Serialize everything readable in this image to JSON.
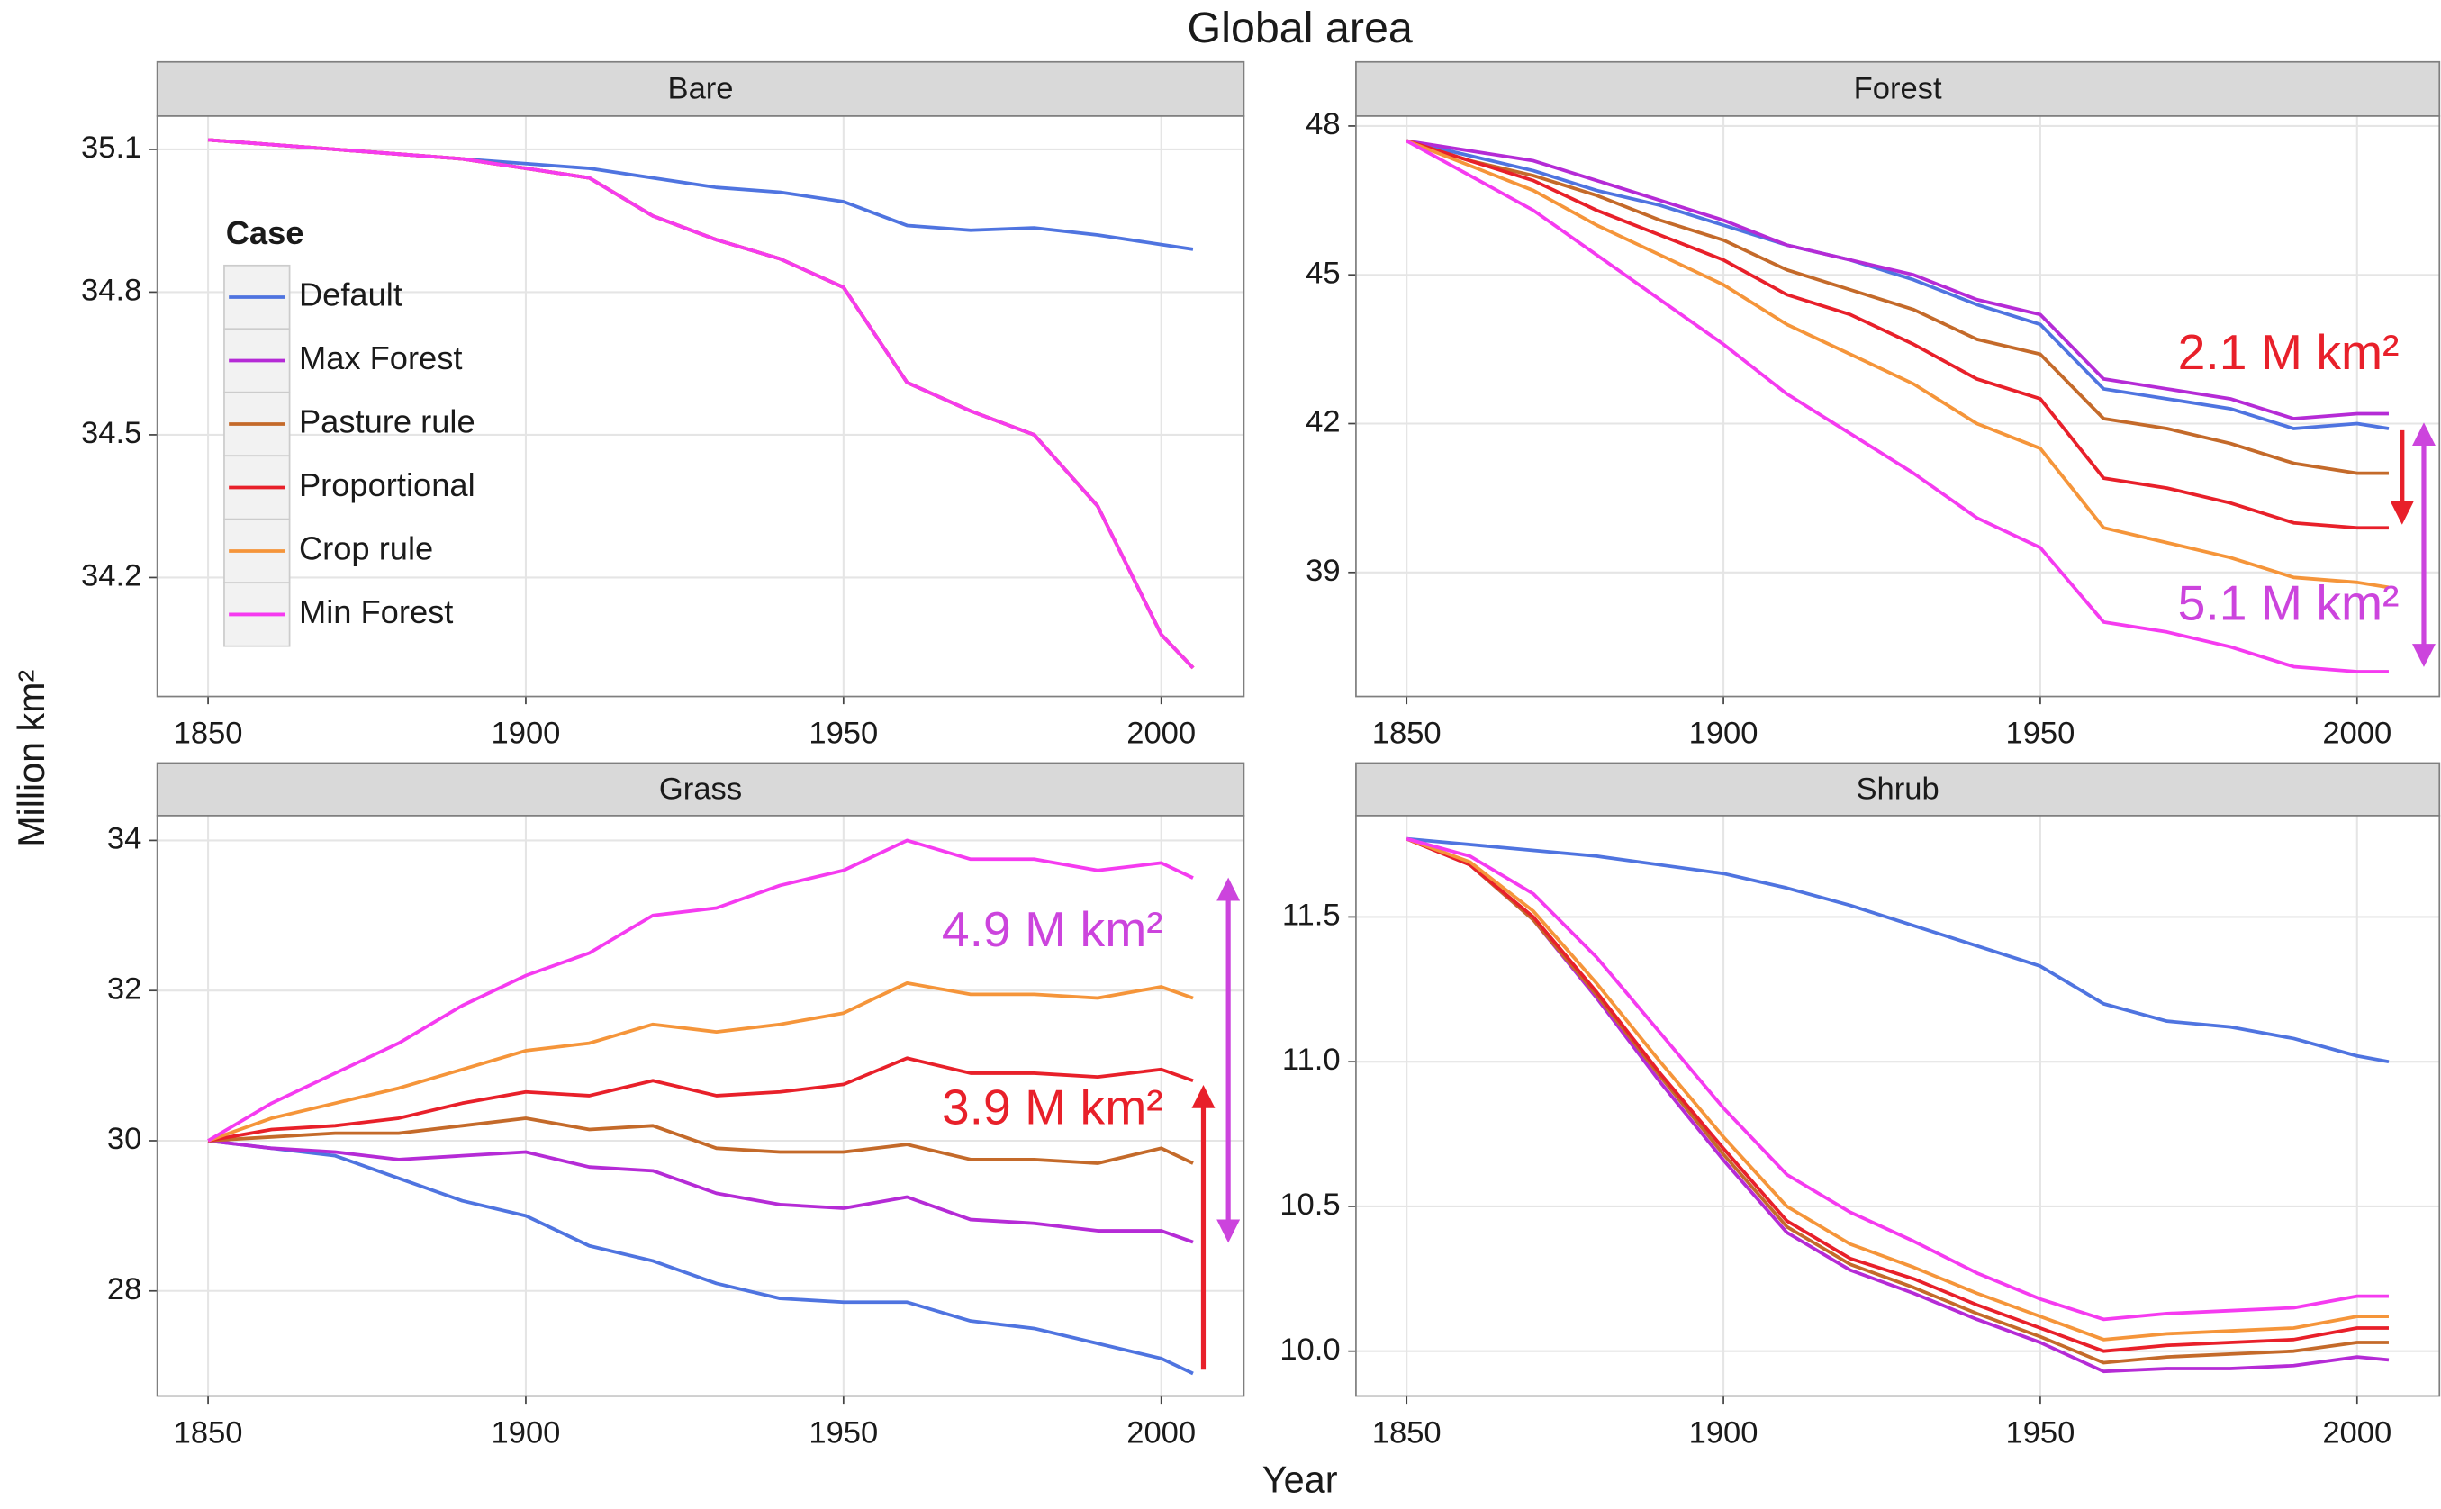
{
  "title": "Global area",
  "x_label": "Year",
  "y_label": "Million km²",
  "legend_title": "Case",
  "chart_data": [
    {
      "type": "line",
      "title": "Bare",
      "legend": "top-left",
      "x": [
        1850,
        1860,
        1870,
        1880,
        1890,
        1900,
        1910,
        1920,
        1930,
        1940,
        1950,
        1960,
        1970,
        1980,
        1990,
        2000,
        2005
      ],
      "xlim": [
        1842,
        2013
      ],
      "xticks": [
        1850,
        1900,
        1950,
        2000
      ],
      "ylim": [
        33.95,
        35.17
      ],
      "yticks": [
        34.2,
        34.5,
        34.8,
        35.1
      ],
      "series": [
        {
          "name": "Default",
          "color": "#4f74e0",
          "values": [
            35.12,
            35.11,
            35.1,
            35.09,
            35.08,
            35.07,
            35.06,
            35.04,
            35.02,
            35.01,
            34.99,
            34.94,
            34.93,
            34.935,
            34.92,
            34.9,
            34.89
          ]
        },
        {
          "name": "Max Forest",
          "color": "#b52bd6",
          "values": [
            35.12,
            35.11,
            35.1,
            35.09,
            35.08,
            35.06,
            35.04,
            34.96,
            34.91,
            34.87,
            34.81,
            34.61,
            34.55,
            34.5,
            34.35,
            34.08,
            34.01
          ]
        },
        {
          "name": "Pasture rule",
          "color": "#c46a2a",
          "values": [
            35.12,
            35.11,
            35.1,
            35.09,
            35.08,
            35.06,
            35.04,
            34.96,
            34.91,
            34.87,
            34.81,
            34.61,
            34.55,
            34.5,
            34.35,
            34.08,
            34.01
          ]
        },
        {
          "name": "Proportional",
          "color": "#e8202a",
          "values": [
            35.12,
            35.11,
            35.1,
            35.09,
            35.08,
            35.06,
            35.04,
            34.96,
            34.91,
            34.87,
            34.81,
            34.61,
            34.55,
            34.5,
            34.35,
            34.08,
            34.01
          ]
        },
        {
          "name": "Crop rule",
          "color": "#f5953a",
          "values": [
            35.12,
            35.11,
            35.1,
            35.09,
            35.08,
            35.06,
            35.04,
            34.96,
            34.91,
            34.87,
            34.81,
            34.61,
            34.55,
            34.5,
            34.35,
            34.08,
            34.01
          ]
        },
        {
          "name": "Min Forest",
          "color": "#f53bf0",
          "values": [
            35.12,
            35.11,
            35.1,
            35.09,
            35.08,
            35.06,
            35.04,
            34.96,
            34.91,
            34.87,
            34.81,
            34.61,
            34.55,
            34.5,
            34.35,
            34.08,
            34.01
          ]
        }
      ]
    },
    {
      "type": "line",
      "title": "Forest",
      "x": [
        1850,
        1860,
        1870,
        1880,
        1890,
        1900,
        1910,
        1920,
        1930,
        1940,
        1950,
        1960,
        1970,
        1980,
        1990,
        2000,
        2005
      ],
      "xlim": [
        1842,
        2013
      ],
      "xticks": [
        1850,
        1900,
        1950,
        2000
      ],
      "ylim": [
        36.5,
        48.2
      ],
      "yticks": [
        39,
        42,
        45,
        48
      ],
      "series": [
        {
          "name": "Default",
          "color": "#4f74e0",
          "values": [
            47.7,
            47.4,
            47.1,
            46.7,
            46.4,
            46.0,
            45.6,
            45.3,
            44.9,
            44.4,
            44.0,
            42.7,
            42.5,
            42.3,
            41.9,
            42.0,
            41.9
          ]
        },
        {
          "name": "Max Forest",
          "color": "#b52bd6",
          "values": [
            47.7,
            47.5,
            47.3,
            46.9,
            46.5,
            46.1,
            45.6,
            45.3,
            45.0,
            44.5,
            44.2,
            42.9,
            42.7,
            42.5,
            42.1,
            42.2,
            42.2
          ]
        },
        {
          "name": "Pasture rule",
          "color": "#c46a2a",
          "values": [
            47.7,
            47.3,
            47.0,
            46.6,
            46.1,
            45.7,
            45.1,
            44.7,
            44.3,
            43.7,
            43.4,
            42.1,
            41.9,
            41.6,
            41.2,
            41.0,
            41.0
          ]
        },
        {
          "name": "Proportional",
          "color": "#e8202a",
          "values": [
            47.7,
            47.3,
            46.9,
            46.3,
            45.8,
            45.3,
            44.6,
            44.2,
            43.6,
            42.9,
            42.5,
            40.9,
            40.7,
            40.4,
            40.0,
            39.9,
            39.9
          ]
        },
        {
          "name": "Crop rule",
          "color": "#f5953a",
          "values": [
            47.7,
            47.2,
            46.7,
            46.0,
            45.4,
            44.8,
            44.0,
            43.4,
            42.8,
            42.0,
            41.5,
            39.9,
            39.6,
            39.3,
            38.9,
            38.8,
            38.7
          ]
        },
        {
          "name": "Min Forest",
          "color": "#f53bf0",
          "values": [
            47.7,
            47.0,
            46.3,
            45.4,
            44.5,
            43.6,
            42.6,
            41.8,
            41.0,
            40.1,
            39.5,
            38.0,
            37.8,
            37.5,
            37.1,
            37.0,
            37.0
          ]
        }
      ],
      "annotations": [
        {
          "text": "2.1 M km²",
          "color": "#e8202a"
        },
        {
          "text": "5.1 M km²",
          "color": "#cc44dd"
        }
      ]
    },
    {
      "type": "line",
      "title": "Grass",
      "x": [
        1850,
        1860,
        1870,
        1880,
        1890,
        1900,
        1910,
        1920,
        1930,
        1940,
        1950,
        1960,
        1970,
        1980,
        1990,
        2000,
        2005
      ],
      "xlim": [
        1842,
        2013
      ],
      "xticks": [
        1850,
        1900,
        1950,
        2000
      ],
      "ylim": [
        26.6,
        34.33
      ],
      "yticks": [
        28,
        30,
        32,
        34
      ],
      "series": [
        {
          "name": "Default",
          "color": "#4f74e0",
          "values": [
            30.0,
            29.9,
            29.8,
            29.5,
            29.2,
            29.0,
            28.6,
            28.4,
            28.1,
            27.9,
            27.85,
            27.85,
            27.6,
            27.5,
            27.3,
            27.1,
            26.9
          ]
        },
        {
          "name": "Max Forest",
          "color": "#b52bd6",
          "values": [
            30.0,
            29.9,
            29.85,
            29.75,
            29.8,
            29.85,
            29.65,
            29.6,
            29.3,
            29.15,
            29.1,
            29.25,
            28.95,
            28.9,
            28.8,
            28.8,
            28.65
          ]
        },
        {
          "name": "Pasture rule",
          "color": "#c46a2a",
          "values": [
            30.0,
            30.05,
            30.1,
            30.1,
            30.2,
            30.3,
            30.15,
            30.2,
            29.9,
            29.85,
            29.85,
            29.95,
            29.75,
            29.75,
            29.7,
            29.9,
            29.7
          ]
        },
        {
          "name": "Proportional",
          "color": "#e8202a",
          "values": [
            30.0,
            30.15,
            30.2,
            30.3,
            30.5,
            30.65,
            30.6,
            30.8,
            30.6,
            30.65,
            30.75,
            31.1,
            30.9,
            30.9,
            30.85,
            30.95,
            30.8
          ]
        },
        {
          "name": "Crop rule",
          "color": "#f5953a",
          "values": [
            30.0,
            30.3,
            30.5,
            30.7,
            30.95,
            31.2,
            31.3,
            31.55,
            31.45,
            31.55,
            31.7,
            32.1,
            31.95,
            31.95,
            31.9,
            32.05,
            31.9
          ]
        },
        {
          "name": "Min Forest",
          "color": "#f53bf0",
          "values": [
            30.0,
            30.5,
            30.9,
            31.3,
            31.8,
            32.2,
            32.5,
            33.0,
            33.1,
            33.4,
            33.6,
            34.0,
            33.75,
            33.75,
            33.6,
            33.7,
            33.5
          ]
        }
      ],
      "annotations": [
        {
          "text": "4.9 M km²",
          "color": "#cc44dd"
        },
        {
          "text": "3.9 M km²",
          "color": "#e8202a"
        }
      ]
    },
    {
      "type": "line",
      "title": "Shrub",
      "x": [
        1850,
        1860,
        1870,
        1880,
        1890,
        1900,
        1910,
        1920,
        1930,
        1940,
        1950,
        1960,
        1970,
        1980,
        1990,
        2000,
        2005
      ],
      "xlim": [
        1842,
        2013
      ],
      "xticks": [
        1850,
        1900,
        1950,
        2000
      ],
      "ylim": [
        9.845,
        11.85
      ],
      "yticks": [
        {
          "value": 10,
          "label": "10.0"
        },
        10.5,
        {
          "value": 11,
          "label": "11.0"
        },
        11.5
      ],
      "series": [
        {
          "name": "Default",
          "color": "#4f74e0",
          "values": [
            11.77,
            11.75,
            11.73,
            11.71,
            11.68,
            11.65,
            11.6,
            11.54,
            11.47,
            11.4,
            11.33,
            11.2,
            11.14,
            11.12,
            11.08,
            11.02,
            11.0
          ]
        },
        {
          "name": "Max Forest",
          "color": "#b52bd6",
          "values": [
            11.77,
            11.68,
            11.49,
            11.22,
            10.93,
            10.66,
            10.41,
            10.28,
            10.2,
            10.11,
            10.03,
            9.93,
            9.94,
            9.94,
            9.95,
            9.98,
            9.97
          ]
        },
        {
          "name": "Pasture rule",
          "color": "#c46a2a",
          "values": [
            11.77,
            11.68,
            11.49,
            11.23,
            10.95,
            10.68,
            10.43,
            10.3,
            10.22,
            10.13,
            10.05,
            9.96,
            9.98,
            9.99,
            10.0,
            10.03,
            10.03
          ]
        },
        {
          "name": "Proportional",
          "color": "#e8202a",
          "values": [
            11.77,
            11.68,
            11.5,
            11.24,
            10.96,
            10.7,
            10.45,
            10.32,
            10.25,
            10.16,
            10.08,
            10.0,
            10.02,
            10.03,
            10.04,
            10.08,
            10.08
          ]
        },
        {
          "name": "Crop rule",
          "color": "#f5953a",
          "values": [
            11.77,
            11.69,
            11.52,
            11.27,
            11.0,
            10.74,
            10.5,
            10.37,
            10.29,
            10.2,
            10.12,
            10.04,
            10.06,
            10.07,
            10.08,
            10.12,
            10.12
          ]
        },
        {
          "name": "Min Forest",
          "color": "#f53bf0",
          "values": [
            11.77,
            11.71,
            11.58,
            11.36,
            11.1,
            10.84,
            10.61,
            10.48,
            10.38,
            10.27,
            10.18,
            10.11,
            10.13,
            10.14,
            10.15,
            10.19,
            10.19
          ]
        }
      ]
    }
  ]
}
